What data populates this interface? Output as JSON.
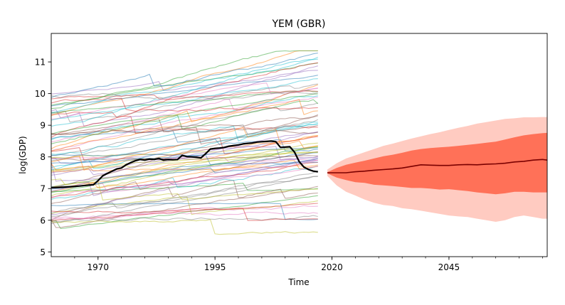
{
  "chart_data": {
    "type": "line",
    "title": "YEM (GBR)",
    "xlabel": "Time",
    "ylabel": "log(GDP)",
    "xlim": [
      1960,
      2066
    ],
    "ylim": [
      4.85,
      11.9
    ],
    "x_ticks": [
      {
        "value": 1970,
        "label": "1970"
      },
      {
        "value": 1995,
        "label": "1995"
      },
      {
        "value": 2020,
        "label": "2020"
      },
      {
        "value": 2045,
        "label": "2045"
      }
    ],
    "x_minor_step": 5,
    "y_ticks": [
      {
        "value": 5,
        "label": "5"
      },
      {
        "value": 6,
        "label": "6"
      },
      {
        "value": 7,
        "label": "7"
      },
      {
        "value": 8,
        "label": "8"
      },
      {
        "value": 9,
        "label": "9"
      },
      {
        "value": 10,
        "label": "10"
      },
      {
        "value": 11,
        "label": "11"
      }
    ],
    "grid": false,
    "history_period": [
      1960,
      2017
    ],
    "forecast_period": [
      2019,
      2066
    ],
    "highlight_series": {
      "color": "#000000",
      "x": [
        1960,
        1962,
        1964,
        1966,
        1968,
        1969,
        1970,
        1971,
        1972,
        1973,
        1974,
        1975,
        1976,
        1977,
        1978,
        1979,
        1980,
        1981,
        1982,
        1983,
        1984,
        1985,
        1986,
        1987,
        1988,
        1989,
        1990,
        1991,
        1992,
        1993,
        1994,
        1995,
        1996,
        1997,
        1998,
        1999,
        2000,
        2001,
        2002,
        2003,
        2004,
        2005,
        2006,
        2007,
        2008,
        2009,
        2010,
        2011,
        2012,
        2013,
        2014,
        2015,
        2016,
        2017
      ],
      "values": [
        7.03,
        7.04,
        7.06,
        7.08,
        7.11,
        7.12,
        7.25,
        7.4,
        7.48,
        7.55,
        7.62,
        7.65,
        7.75,
        7.82,
        7.88,
        7.92,
        7.9,
        7.93,
        7.92,
        7.95,
        7.9,
        7.92,
        7.91,
        7.92,
        8.05,
        8.01,
        8.0,
        7.99,
        7.97,
        8.1,
        8.25,
        8.27,
        8.28,
        8.3,
        8.34,
        8.36,
        8.38,
        8.41,
        8.43,
        8.44,
        8.47,
        8.48,
        8.49,
        8.5,
        8.48,
        8.3,
        8.31,
        8.32,
        8.15,
        7.85,
        7.68,
        7.6,
        7.55,
        7.53
      ]
    },
    "forecast": {
      "start_value": 7.5,
      "x": [
        2019,
        2021,
        2023,
        2025,
        2027,
        2029,
        2031,
        2033,
        2035,
        2037,
        2039,
        2041,
        2043,
        2045,
        2047,
        2049,
        2051,
        2053,
        2055,
        2057,
        2059,
        2061,
        2063,
        2065,
        2066
      ],
      "median": [
        7.5,
        7.5,
        7.5,
        7.53,
        7.55,
        7.58,
        7.6,
        7.62,
        7.65,
        7.7,
        7.75,
        7.74,
        7.73,
        7.73,
        7.75,
        7.76,
        7.75,
        7.77,
        7.78,
        7.8,
        7.84,
        7.86,
        7.9,
        7.92,
        7.9
      ],
      "inner_upper": [
        7.52,
        7.65,
        7.75,
        7.82,
        7.88,
        7.95,
        8.02,
        8.07,
        8.13,
        8.2,
        8.25,
        8.28,
        8.3,
        8.32,
        8.35,
        8.38,
        8.41,
        8.45,
        8.48,
        8.55,
        8.62,
        8.68,
        8.72,
        8.75,
        8.76
      ],
      "inner_lower": [
        7.48,
        7.35,
        7.27,
        7.2,
        7.18,
        7.12,
        7.1,
        7.08,
        7.05,
        7.02,
        7.02,
        7.0,
        6.97,
        6.98,
        6.95,
        6.92,
        6.88,
        6.85,
        6.82,
        6.85,
        6.9,
        6.9,
        6.88,
        6.88,
        6.88
      ],
      "outer_upper": [
        7.6,
        7.8,
        7.95,
        8.05,
        8.15,
        8.25,
        8.35,
        8.42,
        8.5,
        8.58,
        8.65,
        8.72,
        8.78,
        8.85,
        8.92,
        8.98,
        9.05,
        9.1,
        9.15,
        9.2,
        9.22,
        9.25,
        9.25,
        9.26,
        9.26
      ],
      "outer_lower": [
        7.4,
        7.1,
        6.9,
        6.78,
        6.65,
        6.55,
        6.48,
        6.45,
        6.38,
        6.35,
        6.3,
        6.25,
        6.2,
        6.15,
        6.12,
        6.1,
        6.05,
        6.0,
        5.95,
        6.0,
        6.1,
        6.15,
        6.1,
        6.05,
        6.05
      ],
      "colors": {
        "median": "#7a0000",
        "inner": "#ff7158",
        "outer": "#ffcbc1"
      }
    },
    "background_series_count": 80,
    "palette": [
      "#1f77b4",
      "#ff7f0e",
      "#2ca02c",
      "#d62728",
      "#9467bd",
      "#8c564b",
      "#e377c2",
      "#7f7f7f",
      "#bcbd22",
      "#17becf"
    ]
  }
}
